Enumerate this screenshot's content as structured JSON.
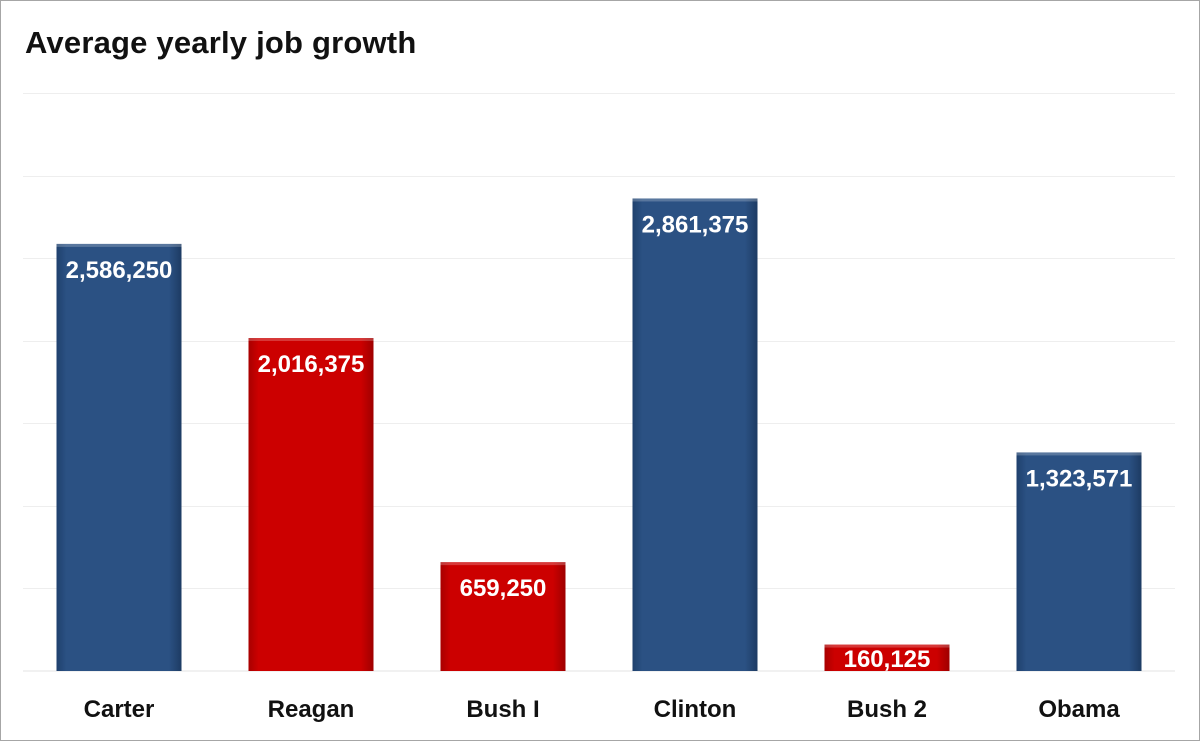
{
  "chart_data": {
    "type": "bar",
    "title": "Average yearly job growth",
    "xlabel": "",
    "ylabel": "",
    "categories": [
      "Carter",
      "Reagan",
      "Bush I",
      "Clinton",
      "Bush 2",
      "Obama"
    ],
    "values": [
      2586250,
      2016375,
      659250,
      2861375,
      160125,
      1323571
    ],
    "data_labels": [
      "2,586,250",
      "2,016,375",
      "659,250",
      "2,861,375",
      "160,125",
      "1,323,571"
    ],
    "party_colors": [
      "#2b5183",
      "#cc0000",
      "#cc0000",
      "#2b5183",
      "#cc0000",
      "#2b5183"
    ],
    "ylim": [
      0,
      3500000
    ],
    "gridlines": [
      500000,
      1000000,
      1500000,
      2000000,
      2500000,
      3000000,
      3500000
    ],
    "grid": true,
    "legend": "none"
  }
}
